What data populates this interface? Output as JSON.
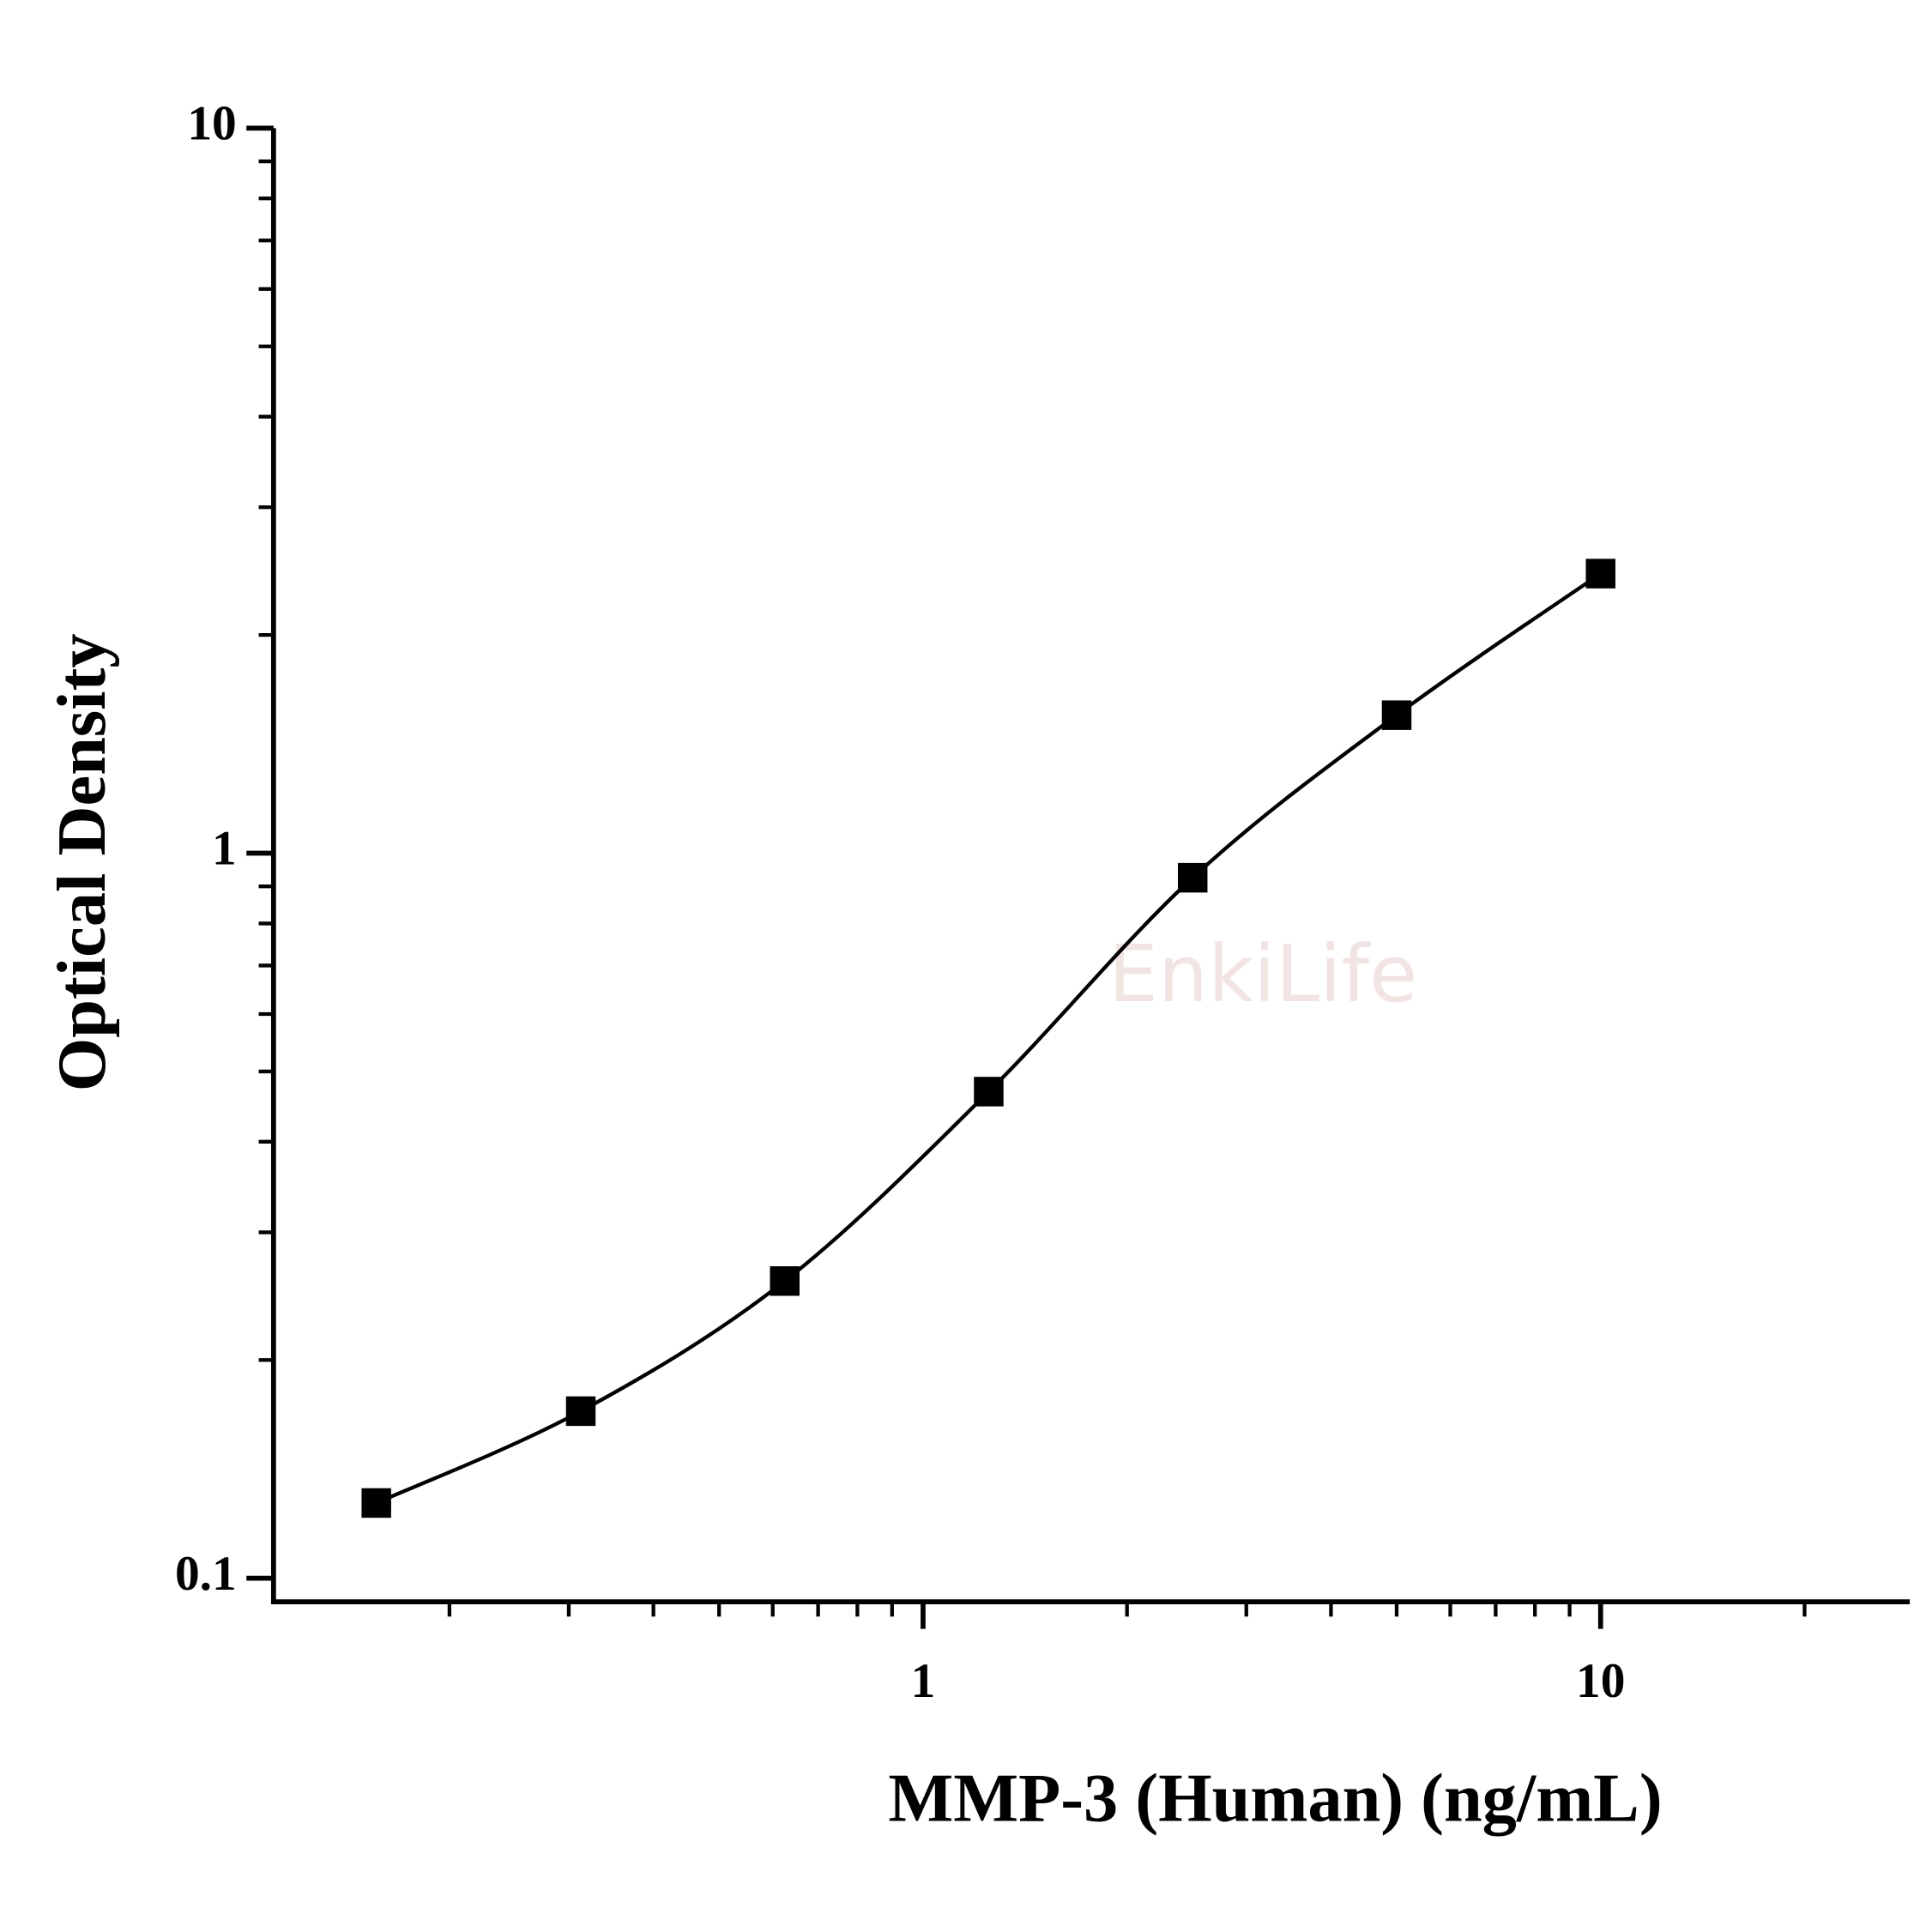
{
  "chart_data": {
    "type": "scatter",
    "x_label": "MMP-3 (Human) (ng/mL)",
    "y_label": "Optical Density",
    "watermark": "EnkiLife",
    "x_scale": "log",
    "y_scale": "log",
    "xlim": [
      0.11,
      28.6
    ],
    "ylim": [
      0.0928,
      10
    ],
    "xticks": [
      1,
      10
    ],
    "yticks": [
      0.1,
      1,
      10
    ],
    "grid": false,
    "fit_line": true,
    "series": [
      {
        "color": "#000000",
        "x": [
          0.156,
          0.3125,
          0.625,
          1.25,
          2.5,
          5,
          10
        ],
        "values": [
          0.127,
          0.17,
          0.257,
          0.469,
          0.925,
          1.55,
          2.43
        ]
      }
    ]
  }
}
